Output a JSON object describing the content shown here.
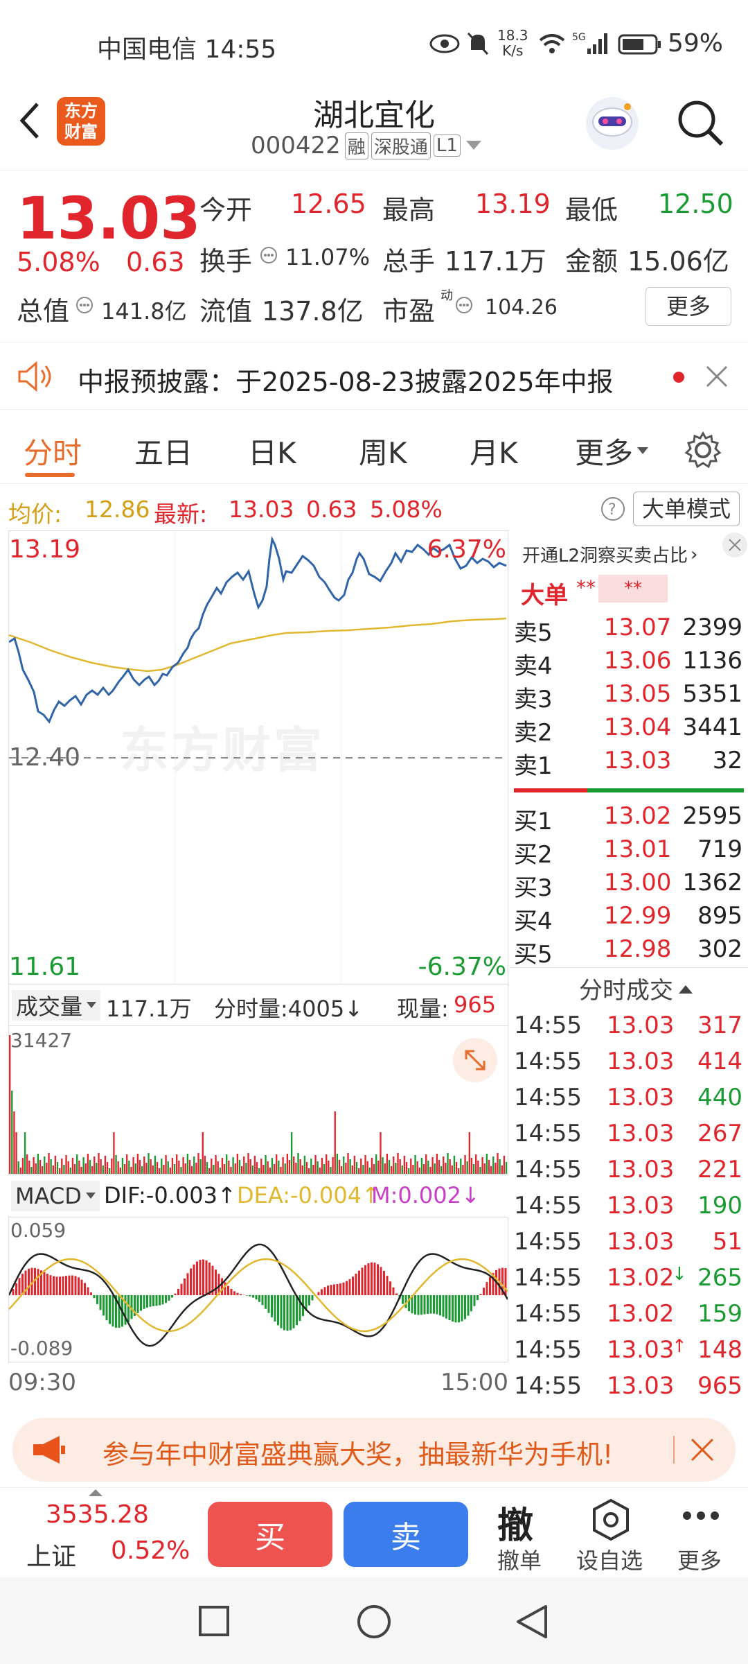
{
  "status": {
    "carrier_time": "中国电信 14:55",
    "net_speed_top": "18.3",
    "net_speed_bottom": "K/s",
    "battery": "59%"
  },
  "header": {
    "title": "湖北宜化",
    "code": "000422",
    "badges": [
      "融",
      "深股通",
      "L1"
    ],
    "logo_line1": "东方",
    "logo_line2": "财富"
  },
  "quote": {
    "price": "13.03",
    "change_pct": "5.08%",
    "change": "0.63",
    "open_label": "今开",
    "open": "12.65",
    "high_label": "最高",
    "high": "13.19",
    "low_label": "最低",
    "low": "12.50",
    "turnover_label": "换手",
    "turnover": "11.07%",
    "volume_label": "总手",
    "volume": "117.1万",
    "amount_label": "金额",
    "amount": "15.06亿",
    "mktcap_label": "总值",
    "mktcap": "141.8亿",
    "float_label": "流值",
    "float": "137.8亿",
    "pe_label": "市盈",
    "pe_sup": "动",
    "pe": "104.26",
    "more": "更多"
  },
  "notice": {
    "text": "中报预披露：于2025-08-23披露2025年中报"
  },
  "tabs": [
    "分时",
    "五日",
    "日K",
    "周K",
    "月K",
    "更多"
  ],
  "avgline": {
    "avg_label": "均价:",
    "avg": "12.86",
    "latest_label": "最新:",
    "latest": "13.03",
    "chg": "0.63",
    "pct": "5.08%",
    "mode_btn": "大单模式"
  },
  "chart": {
    "top_price": "13.19",
    "top_pct": "6.37%",
    "mid_price": "12.40",
    "bottom_price": "11.61",
    "bottom_pct": "-6.37%",
    "watermark": "东方财富"
  },
  "orderbook": {
    "promo": "开通L2洞察买卖占比",
    "big_label": "大单",
    "big_stars": "**",
    "big_stars2": "**",
    "sells": [
      {
        "label": "卖5",
        "price": "13.07",
        "vol": "2399"
      },
      {
        "label": "卖4",
        "price": "13.06",
        "vol": "1136"
      },
      {
        "label": "卖3",
        "price": "13.05",
        "vol": "5351"
      },
      {
        "label": "卖2",
        "price": "13.04",
        "vol": "3441"
      },
      {
        "label": "卖1",
        "price": "13.03",
        "vol": "32"
      }
    ],
    "buys": [
      {
        "label": "买1",
        "price": "13.02",
        "vol": "2595"
      },
      {
        "label": "买2",
        "price": "13.01",
        "vol": "719"
      },
      {
        "label": "买3",
        "price": "13.00",
        "vol": "1362"
      },
      {
        "label": "买4",
        "price": "12.99",
        "vol": "895"
      },
      {
        "label": "买5",
        "price": "12.98",
        "vol": "302"
      }
    ]
  },
  "trades": {
    "title": "分时成交",
    "rows": [
      {
        "t": "14:55",
        "p": "13.03",
        "v": "317",
        "vc": "red",
        "arrow": ""
      },
      {
        "t": "14:55",
        "p": "13.03",
        "v": "414",
        "vc": "red",
        "arrow": ""
      },
      {
        "t": "14:55",
        "p": "13.03",
        "v": "440",
        "vc": "green",
        "arrow": ""
      },
      {
        "t": "14:55",
        "p": "13.03",
        "v": "267",
        "vc": "red",
        "arrow": ""
      },
      {
        "t": "14:55",
        "p": "13.03",
        "v": "221",
        "vc": "red",
        "arrow": ""
      },
      {
        "t": "14:55",
        "p": "13.03",
        "v": "190",
        "vc": "green",
        "arrow": ""
      },
      {
        "t": "14:55",
        "p": "13.03",
        "v": "51",
        "vc": "red",
        "arrow": ""
      },
      {
        "t": "14:55",
        "p": "13.02",
        "v": "265",
        "vc": "green",
        "arrow": "↓"
      },
      {
        "t": "14:55",
        "p": "13.02",
        "v": "159",
        "vc": "green",
        "arrow": ""
      },
      {
        "t": "14:55",
        "p": "13.03",
        "v": "148",
        "vc": "red",
        "arrow": "↑"
      },
      {
        "t": "14:55",
        "p": "13.03",
        "v": "965",
        "vc": "red",
        "arrow": ""
      }
    ]
  },
  "volume": {
    "label": "成交量",
    "total": "117.1万",
    "tick_label": "分时量:4005↓",
    "now_label": "现量:",
    "now": "965",
    "max": "31427"
  },
  "macd": {
    "label": "MACD",
    "dif": "DIF:-0.003↑",
    "dea": "DEA:-0.004↑",
    "m": "M:0.002↓",
    "top": "0.059",
    "bottom": "-0.089"
  },
  "timeaxis": {
    "start": "09:30",
    "end": "15:00"
  },
  "promo": {
    "text": "参与年中财富盛典赢大奖，抽最新华为手机!"
  },
  "bottombar": {
    "index_value": "3535.28",
    "index_name": "上证",
    "index_pct": "0.52%",
    "buy": "买",
    "sell": "卖",
    "cancel_icon": "撤",
    "cancel": "撤单",
    "watch": "设自选",
    "more": "更多"
  },
  "colors": {
    "up": "#e0262c",
    "down": "#1a9b32",
    "price_line": "#2f64a8",
    "avg_line": "#e2b730",
    "buy_btn": "#ef5350",
    "sell_btn": "#3b7ded"
  }
}
